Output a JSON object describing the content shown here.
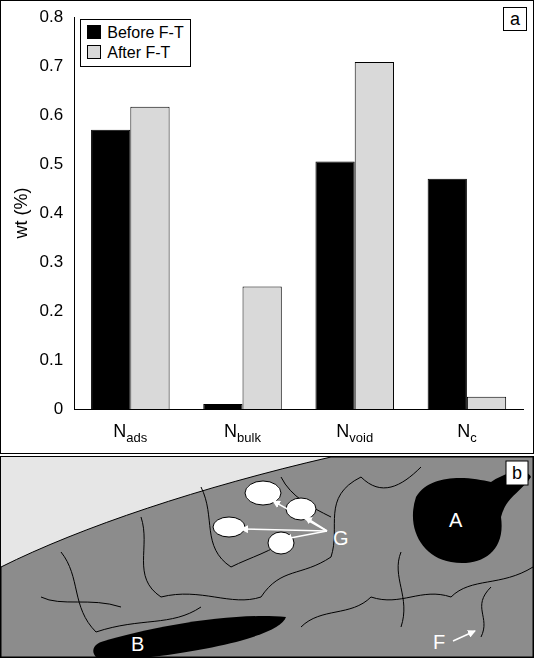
{
  "chart_data": {
    "type": "bar",
    "categories": [
      "Nads",
      "Nbulk",
      "Nvoid",
      "Nc"
    ],
    "y_label": "wt (%)",
    "series": [
      {
        "name": "Before F-T",
        "color": "#000000",
        "values": [
          0.57,
          0.01,
          0.505,
          0.47
        ]
      },
      {
        "name": "After F-T",
        "color": "#d9d9d9",
        "values": [
          0.617,
          0.25,
          0.708,
          0.025
        ]
      }
    ],
    "ylim": [
      0,
      0.8
    ],
    "yticks": [
      0,
      0.1,
      0.2,
      0.3,
      0.4,
      0.5,
      0.6,
      0.7,
      0.8
    ],
    "grid": false,
    "legend": "top-left",
    "annotations": [
      "a"
    ]
  },
  "diagram": {
    "panel_label": "b",
    "labels": [
      "A",
      "B",
      "F",
      "G"
    ]
  }
}
